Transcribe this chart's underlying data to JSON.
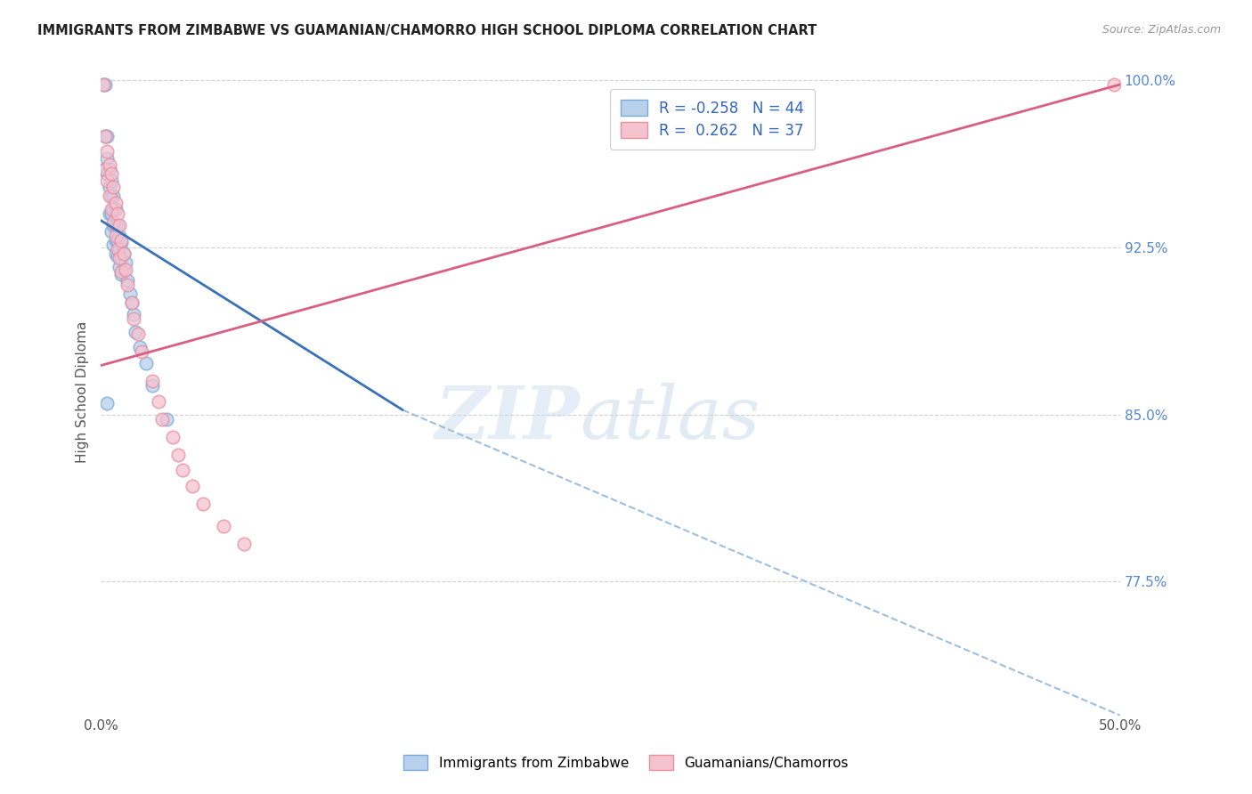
{
  "title": "IMMIGRANTS FROM ZIMBABWE VS GUAMANIAN/CHAMORRO HIGH SCHOOL DIPLOMA CORRELATION CHART",
  "source": "Source: ZipAtlas.com",
  "ylabel": "High School Diploma",
  "xlim": [
    0.0,
    0.5
  ],
  "ylim": [
    0.715,
    1.005
  ],
  "xticks": [
    0.0,
    0.1,
    0.2,
    0.3,
    0.4,
    0.5
  ],
  "xticklabels": [
    "0.0%",
    "",
    "",
    "",
    "",
    "50.0%"
  ],
  "yticks": [
    0.775,
    0.85,
    0.925,
    1.0
  ],
  "yticklabels_right": [
    "77.5%",
    "85.0%",
    "92.5%",
    "100.0%"
  ],
  "blue_color_fill": "#b8d0ec",
  "blue_color_edge": "#7aabda",
  "pink_color_fill": "#f5c2d0",
  "pink_color_edge": "#e8909e",
  "blue_line_color": "#3a72b8",
  "pink_line_color": "#d95f82",
  "dashed_line_color": "#a0bedd",
  "background_color": "#ffffff",
  "blue_scatter_x": [
    0.001,
    0.002,
    0.002,
    0.002,
    0.003,
    0.003,
    0.003,
    0.004,
    0.004,
    0.004,
    0.005,
    0.005,
    0.005,
    0.005,
    0.006,
    0.006,
    0.006,
    0.006,
    0.007,
    0.007,
    0.007,
    0.007,
    0.008,
    0.008,
    0.008,
    0.009,
    0.009,
    0.009,
    0.01,
    0.01,
    0.01,
    0.011,
    0.011,
    0.012,
    0.013,
    0.014,
    0.015,
    0.016,
    0.017,
    0.019,
    0.022,
    0.025,
    0.003,
    0.032
  ],
  "blue_scatter_y": [
    0.998,
    0.998,
    0.975,
    0.96,
    0.975,
    0.965,
    0.958,
    0.96,
    0.952,
    0.94,
    0.955,
    0.948,
    0.94,
    0.932,
    0.948,
    0.942,
    0.935,
    0.926,
    0.942,
    0.935,
    0.928,
    0.922,
    0.935,
    0.928,
    0.921,
    0.93,
    0.924,
    0.916,
    0.927,
    0.92,
    0.913,
    0.922,
    0.915,
    0.918,
    0.91,
    0.904,
    0.9,
    0.895,
    0.887,
    0.88,
    0.873,
    0.863,
    0.855,
    0.848
  ],
  "pink_scatter_x": [
    0.001,
    0.002,
    0.002,
    0.003,
    0.003,
    0.004,
    0.004,
    0.005,
    0.005,
    0.006,
    0.006,
    0.007,
    0.007,
    0.008,
    0.008,
    0.009,
    0.009,
    0.01,
    0.01,
    0.011,
    0.012,
    0.013,
    0.015,
    0.016,
    0.018,
    0.02,
    0.025,
    0.028,
    0.03,
    0.035,
    0.038,
    0.04,
    0.045,
    0.05,
    0.06,
    0.07,
    0.497
  ],
  "pink_scatter_y": [
    0.998,
    0.975,
    0.96,
    0.968,
    0.955,
    0.962,
    0.948,
    0.958,
    0.942,
    0.952,
    0.936,
    0.945,
    0.93,
    0.94,
    0.924,
    0.935,
    0.92,
    0.928,
    0.914,
    0.922,
    0.915,
    0.908,
    0.9,
    0.893,
    0.886,
    0.878,
    0.865,
    0.856,
    0.848,
    0.84,
    0.832,
    0.825,
    0.818,
    0.81,
    0.8,
    0.792,
    0.998
  ],
  "blue_line_x0": 0.0,
  "blue_line_y0": 0.937,
  "blue_line_x1": 0.148,
  "blue_line_y1": 0.852,
  "dashed_line_x0": 0.148,
  "dashed_line_y0": 0.852,
  "dashed_line_x1": 0.5,
  "dashed_line_y1": 0.715,
  "pink_line_x0": 0.0,
  "pink_line_y0": 0.872,
  "pink_line_x1": 0.5,
  "pink_line_y1": 0.998,
  "watermark_zip": "ZIP",
  "watermark_atlas": "atlas",
  "legend_items": [
    {
      "label": "R = -0.258   N = 44",
      "fill": "#b8d0ec",
      "edge": "#7aabda"
    },
    {
      "label": "R =  0.262   N = 37",
      "fill": "#f5c2d0",
      "edge": "#e8909e"
    }
  ],
  "bottom_legend": [
    "Immigrants from Zimbabwe",
    "Guamanians/Chamorros"
  ]
}
